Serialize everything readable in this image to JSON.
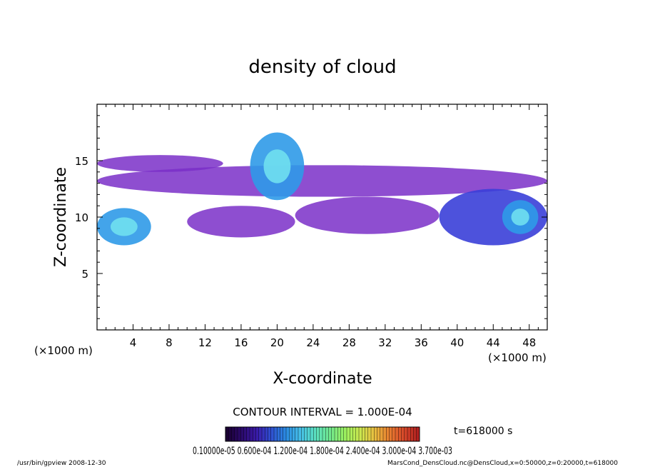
{
  "chart_data": {
    "type": "heatmap",
    "title": "density of cloud",
    "xlabel": "X-coordinate",
    "ylabel": "Z-coordinate",
    "x_unit": "(×1000 m)",
    "y_unit": "(×1000 m)",
    "xlim": [
      0,
      50
    ],
    "ylim": [
      0,
      20
    ],
    "x_ticks": [
      4,
      8,
      12,
      16,
      20,
      24,
      28,
      32,
      36,
      40,
      44,
      48
    ],
    "y_ticks": [
      5,
      10,
      15
    ],
    "contour_interval_text": "CONTOUR INTERVAL = 1.000E-04",
    "time_label": "t=618000 s",
    "colorbar": {
      "label_text": "0.10000e-05 0.600e-04 1.200e-04 1.800e-04 2.400e-04 3.000e-04 3.700e-03",
      "colors": [
        "#1a0033",
        "#2b0a6b",
        "#3a1aa8",
        "#2f4fd0",
        "#2a8ae0",
        "#46c0e8",
        "#5ae0c0",
        "#70e890",
        "#9af060",
        "#c8e850",
        "#e8c040",
        "#e88030",
        "#d84a2a",
        "#b02020"
      ]
    },
    "footer_left": "/usr/bin/gpview  2008-12-30",
    "footer_right": "MarsCond_DensCloud.nc@DensCloud,x=0:50000,z=0:20000,t=618000",
    "cloud_regions": [
      {
        "x": [
          0,
          14
        ],
        "z": [
          14.0,
          15.5
        ],
        "level": "low"
      },
      {
        "x": [
          0,
          50
        ],
        "z": [
          11.8,
          14.6
        ],
        "level": "low"
      },
      {
        "x": [
          0,
          6
        ],
        "z": [
          7.5,
          10.8
        ],
        "level": "high"
      },
      {
        "x": [
          17,
          23
        ],
        "z": [
          11.5,
          17.5
        ],
        "level": "high"
      },
      {
        "x": [
          10,
          22
        ],
        "z": [
          8.2,
          11.0
        ],
        "level": "low"
      },
      {
        "x": [
          22,
          38
        ],
        "z": [
          8.5,
          11.8
        ],
        "level": "low"
      },
      {
        "x": [
          38,
          50
        ],
        "z": [
          7.5,
          12.5
        ],
        "level": "medium"
      },
      {
        "x": [
          45,
          49
        ],
        "z": [
          8.5,
          11.5
        ],
        "level": "high"
      }
    ]
  }
}
